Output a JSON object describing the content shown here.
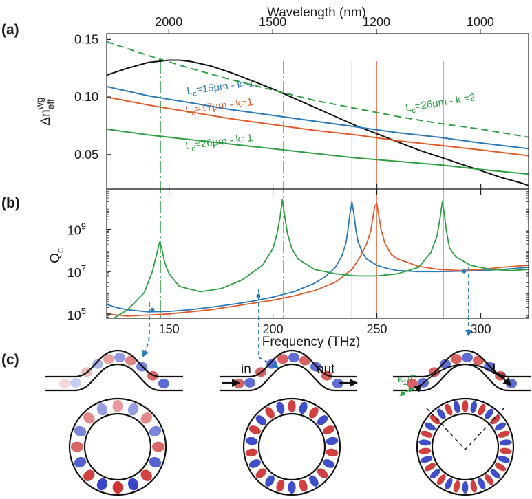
{
  "panels": {
    "a": "(a)",
    "b": "(b)",
    "c": "(c)"
  },
  "colors": {
    "blue": "#2a7ab8",
    "red": "#e05a2b",
    "green": "#2ea043",
    "black": "#111111",
    "arrow": "#2a7ab8"
  },
  "chart_data": [
    {
      "id": "a",
      "type": "line",
      "x_axis": {
        "label": "Frequency (THz)",
        "range": [
          120,
          323
        ]
      },
      "top_axis": {
        "label": "Wavelength (nm)",
        "ticks_nm": [
          2000,
          1500,
          1200,
          1000
        ],
        "tick_labels": [
          "2000",
          "1500",
          "1200",
          "1000"
        ]
      },
      "y_axis": {
        "label_main": "Δn",
        "label_sup": "wg",
        "label_sub": "eff",
        "range": [
          0.02,
          0.155
        ],
        "ticks": [
          0.05,
          0.1,
          0.15
        ],
        "tick_labels": [
          "0.05",
          "0.10",
          "0.15"
        ]
      },
      "series": [
        {
          "key": "black",
          "color": "#111111",
          "dash": "",
          "x": [
            120,
            130,
            140,
            150,
            155,
            160,
            170,
            180,
            190,
            200,
            210,
            220,
            230,
            240,
            250,
            260,
            270,
            280,
            290,
            300,
            310,
            320,
            323
          ],
          "y": [
            0.119,
            0.125,
            0.13,
            0.132,
            0.132,
            0.131,
            0.127,
            0.121,
            0.114,
            0.107,
            0.099,
            0.091,
            0.083,
            0.075,
            0.068,
            0.061,
            0.054,
            0.048,
            0.042,
            0.036,
            0.03,
            0.025,
            0.023
          ]
        },
        {
          "key": "green-dash",
          "color": "#2ea043",
          "dash": "10 6",
          "x": [
            120,
            140,
            160,
            180,
            200,
            220,
            240,
            260,
            280,
            300,
            320,
            323
          ],
          "y": [
            0.148,
            0.136,
            0.125,
            0.115,
            0.106,
            0.097,
            0.09,
            0.083,
            0.077,
            0.072,
            0.066,
            0.065
          ]
        },
        {
          "key": "blue",
          "color": "#2a7ab8",
          "dash": "",
          "x": [
            120,
            140,
            160,
            180,
            200,
            220,
            240,
            260,
            280,
            300,
            323
          ],
          "y": [
            0.109,
            0.101,
            0.095,
            0.089,
            0.084,
            0.079,
            0.074,
            0.069,
            0.065,
            0.06,
            0.055
          ]
        },
        {
          "key": "red",
          "color": "#e05a2b",
          "dash": "",
          "x": [
            120,
            140,
            160,
            180,
            200,
            220,
            240,
            260,
            280,
            300,
            323
          ],
          "y": [
            0.1,
            0.093,
            0.087,
            0.081,
            0.076,
            0.071,
            0.067,
            0.062,
            0.058,
            0.054,
            0.049
          ]
        },
        {
          "key": "green",
          "color": "#2ea043",
          "dash": "",
          "x": [
            120,
            140,
            160,
            180,
            200,
            220,
            240,
            260,
            280,
            300,
            323
          ],
          "y": [
            0.072,
            0.067,
            0.063,
            0.059,
            0.055,
            0.051,
            0.047,
            0.044,
            0.041,
            0.037,
            0.033
          ]
        }
      ],
      "curve_labels": [
        {
          "color": "#2a7ab8",
          "main": "L",
          "sub": "c",
          "rest": "=15μm - k=1"
        },
        {
          "color": "#e05a2b",
          "main": "L",
          "sub": "c",
          "rest": "=17μm - k=1"
        },
        {
          "color": "#2ea043",
          "main": "L",
          "sub": "c",
          "rest": "=26μm - k=1"
        },
        {
          "color": "#2ea043",
          "main": "L",
          "sub": "c",
          "rest": "=26μm - k =2"
        }
      ],
      "guide_lines": [
        {
          "x": 146,
          "color": "#2ea043",
          "dash": "18 4 3 4"
        },
        {
          "x": 205,
          "color": "#2ea043",
          "dash": "18 4 3 4"
        },
        {
          "x": 238,
          "color": "#2a7ab8",
          "dash": ""
        },
        {
          "x": 250,
          "color": "#e05a2b",
          "dash": ""
        },
        {
          "x": 282,
          "color": "#2ea043",
          "dash": ""
        }
      ]
    },
    {
      "id": "b",
      "type": "line",
      "x_axis": {
        "label": "Frequency (THz)",
        "range": [
          120,
          323
        ],
        "ticks": [
          150,
          200,
          250,
          300
        ],
        "tick_labels": [
          "150",
          "200",
          "250",
          "300"
        ]
      },
      "y_axis": {
        "label_main": "Q",
        "label_sub": "c",
        "scale": "log",
        "range_log10": [
          4.8,
          10.9
        ],
        "ticks_log10": [
          5,
          7,
          9
        ],
        "tick_labels": [
          {
            "b": "10",
            "e": "5"
          },
          {
            "b": "10",
            "e": "7"
          },
          {
            "b": "10",
            "e": "9"
          }
        ]
      },
      "series": [
        {
          "key": "blue",
          "color": "#2a7ab8",
          "x": [
            120,
            125,
            130,
            140,
            150,
            160,
            170,
            180,
            190,
            200,
            210,
            220,
            225,
            230,
            233,
            235,
            236,
            237,
            238,
            239,
            240,
            241,
            243,
            245,
            250,
            255,
            260,
            270,
            280,
            290,
            300,
            310,
            323
          ],
          "log10y": [
            5.45,
            5.3,
            5.2,
            5.1,
            5.12,
            5.2,
            5.32,
            5.45,
            5.6,
            5.8,
            6.05,
            6.45,
            6.75,
            7.2,
            7.7,
            8.3,
            8.9,
            9.7,
            10.3,
            9.7,
            8.9,
            8.4,
            7.9,
            7.6,
            7.3,
            7.15,
            7.05,
            7.0,
            7.0,
            7.02,
            7.05,
            7.1,
            7.2
          ]
        },
        {
          "key": "red",
          "color": "#e05a2b",
          "x": [
            120,
            125,
            130,
            140,
            150,
            160,
            170,
            180,
            190,
            200,
            210,
            220,
            230,
            238,
            242,
            245,
            247,
            248,
            249,
            250,
            251,
            252,
            254,
            257,
            260,
            270,
            280,
            290,
            300,
            310,
            323
          ],
          "log10y": [
            5.0,
            4.95,
            4.9,
            4.95,
            5.0,
            5.1,
            5.2,
            5.35,
            5.5,
            5.65,
            5.85,
            6.1,
            6.5,
            7.1,
            7.7,
            8.3,
            8.9,
            9.5,
            10.1,
            10.2,
            9.6,
            9.0,
            8.3,
            7.8,
            7.6,
            7.25,
            7.1,
            7.05,
            7.1,
            7.2,
            7.3
          ]
        },
        {
          "key": "green",
          "color": "#2ea043",
          "x": [
            120,
            130,
            138,
            142,
            144,
            145.5,
            146.5,
            148,
            150,
            155,
            165,
            175,
            185,
            195,
            200,
            202,
            203.5,
            204.5,
            205.5,
            207,
            209,
            212,
            220,
            230,
            240,
            250,
            260,
            270,
            276,
            279,
            280.5,
            281.5,
            282.5,
            283.5,
            285,
            288,
            295,
            305,
            315,
            323
          ],
          "log10y": [
            4.6,
            5.2,
            6.0,
            7.0,
            7.8,
            8.4,
            8.1,
            7.4,
            6.9,
            6.3,
            6.05,
            6.2,
            6.6,
            7.3,
            8.1,
            8.8,
            9.6,
            10.4,
            9.7,
            8.8,
            8.1,
            7.6,
            7.1,
            6.9,
            6.8,
            6.8,
            6.9,
            7.2,
            7.9,
            8.7,
            9.6,
            10.3,
            9.7,
            8.9,
            8.1,
            7.7,
            7.3,
            7.1,
            7.05,
            7.1
          ]
        }
      ],
      "markers": [
        {
          "x": 142,
          "log10y": 5.2
        },
        {
          "x": 193,
          "log10y": 5.85
        },
        {
          "x": 292,
          "log10y": 7.02
        }
      ]
    }
  ],
  "diagram_labels": {
    "in": "in",
    "out": "out",
    "kappa": "κ",
    "kappa_sub": "1",
    "kappa_rest": "/Γ",
    "lc_main": "L",
    "lc_sub": "c"
  },
  "rings": [
    {
      "lobes": 16,
      "fade": "left"
    },
    {
      "lobes": 22,
      "fade": "none"
    },
    {
      "lobes": 30,
      "fade": "none"
    }
  ]
}
